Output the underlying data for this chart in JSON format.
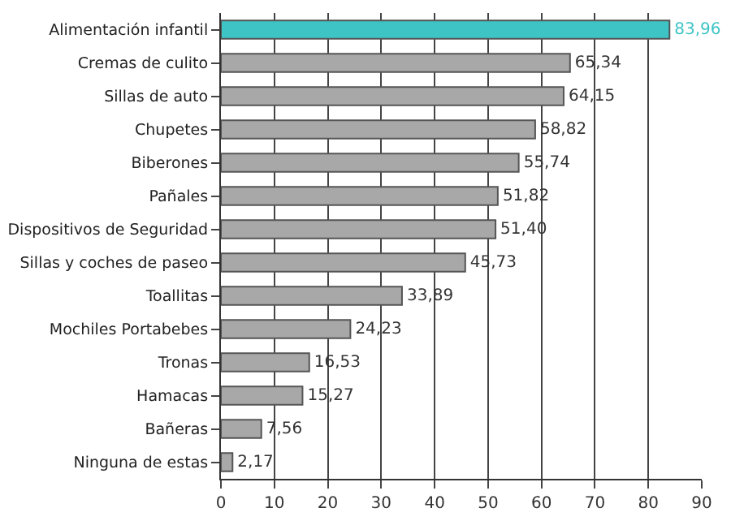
{
  "chart_data": {
    "type": "bar",
    "orientation": "horizontal",
    "categories": [
      "Alimentación infantil",
      "Cremas de culito",
      "Sillas de auto",
      "Chupetes",
      "Biberones",
      "Pañales",
      "Dispositivos de Seguridad",
      "Sillas y coches de paseo",
      "Toallitas",
      "Mochiles Portabebes",
      "Tronas",
      "Hamacas",
      "Bañeras",
      "Ninguna de estas"
    ],
    "values": [
      83.96,
      65.34,
      64.15,
      58.82,
      55.74,
      51.82,
      51.4,
      45.73,
      33.89,
      24.23,
      16.53,
      15.27,
      7.56,
      2.17
    ],
    "value_labels": [
      "83,96",
      "65,34",
      "64,15",
      "58,82",
      "55,74",
      "51,82",
      "51,40",
      "45,73",
      "33,89",
      "24,23",
      "16,53",
      "15,27",
      "7,56",
      "2,17"
    ],
    "colors": [
      "#3fc4c6",
      "#a8a8a8",
      "#a8a8a8",
      "#a8a8a8",
      "#a8a8a8",
      "#a8a8a8",
      "#a8a8a8",
      "#a8a8a8",
      "#a8a8a8",
      "#a8a8a8",
      "#a8a8a8",
      "#a8a8a8",
      "#a8a8a8",
      "#a8a8a8"
    ],
    "xlim": [
      0,
      90
    ],
    "xticks": [
      0,
      10,
      20,
      30,
      40,
      50,
      60,
      70,
      80,
      90
    ],
    "grid": "x",
    "legend": false
  }
}
